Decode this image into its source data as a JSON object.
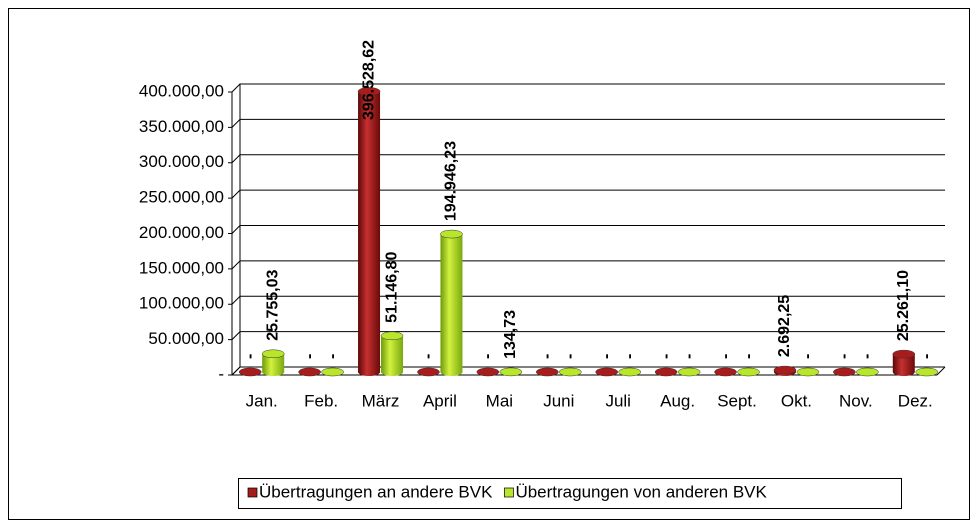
{
  "chart_data": {
    "type": "bar3d",
    "categories": [
      "Jan.",
      "Feb.",
      "März",
      "April",
      "Mai",
      "Juni",
      "Juli",
      "Aug.",
      "Sept.",
      "Okt.",
      "Nov.",
      "Dez."
    ],
    "series": [
      {
        "name": "Übertragungen an andere BVK",
        "color": "#a81c1c",
        "values": [
          0,
          0,
          396528.62,
          0,
          0,
          0,
          0,
          0,
          0,
          2692.25,
          0,
          25261.1
        ],
        "value_labels": [
          "-",
          "-",
          "396.528,62",
          "-",
          "-",
          "-",
          "-",
          "-",
          "-",
          "2.692,25",
          "-",
          "25.261,10"
        ]
      },
      {
        "name": "Übertragungen von anderen BVK",
        "color": "#b8e62a",
        "values": [
          25755.03,
          0,
          51146.8,
          194946.23,
          134.73,
          0,
          0,
          0,
          0,
          0,
          0,
          0
        ],
        "value_labels": [
          "25.755,03",
          "-",
          "51.146,80",
          "194.946,23",
          "134,73",
          "-",
          "-",
          "-",
          "-",
          "-",
          "-",
          "-"
        ]
      }
    ],
    "ylim": [
      0,
      400000
    ],
    "yticks": [
      {
        "value": 0,
        "label": "-"
      },
      {
        "value": 50000,
        "label": "50.000,00"
      },
      {
        "value": 100000,
        "label": "100.000,00"
      },
      {
        "value": 150000,
        "label": "150.000,00"
      },
      {
        "value": 200000,
        "label": "200.000,00"
      },
      {
        "value": 250000,
        "label": "250.000,00"
      },
      {
        "value": 300000,
        "label": "300.000,00"
      },
      {
        "value": 350000,
        "label": "350.000,00"
      },
      {
        "value": 400000,
        "label": "400.000,00"
      }
    ],
    "grid": true,
    "legend": "bottom"
  }
}
